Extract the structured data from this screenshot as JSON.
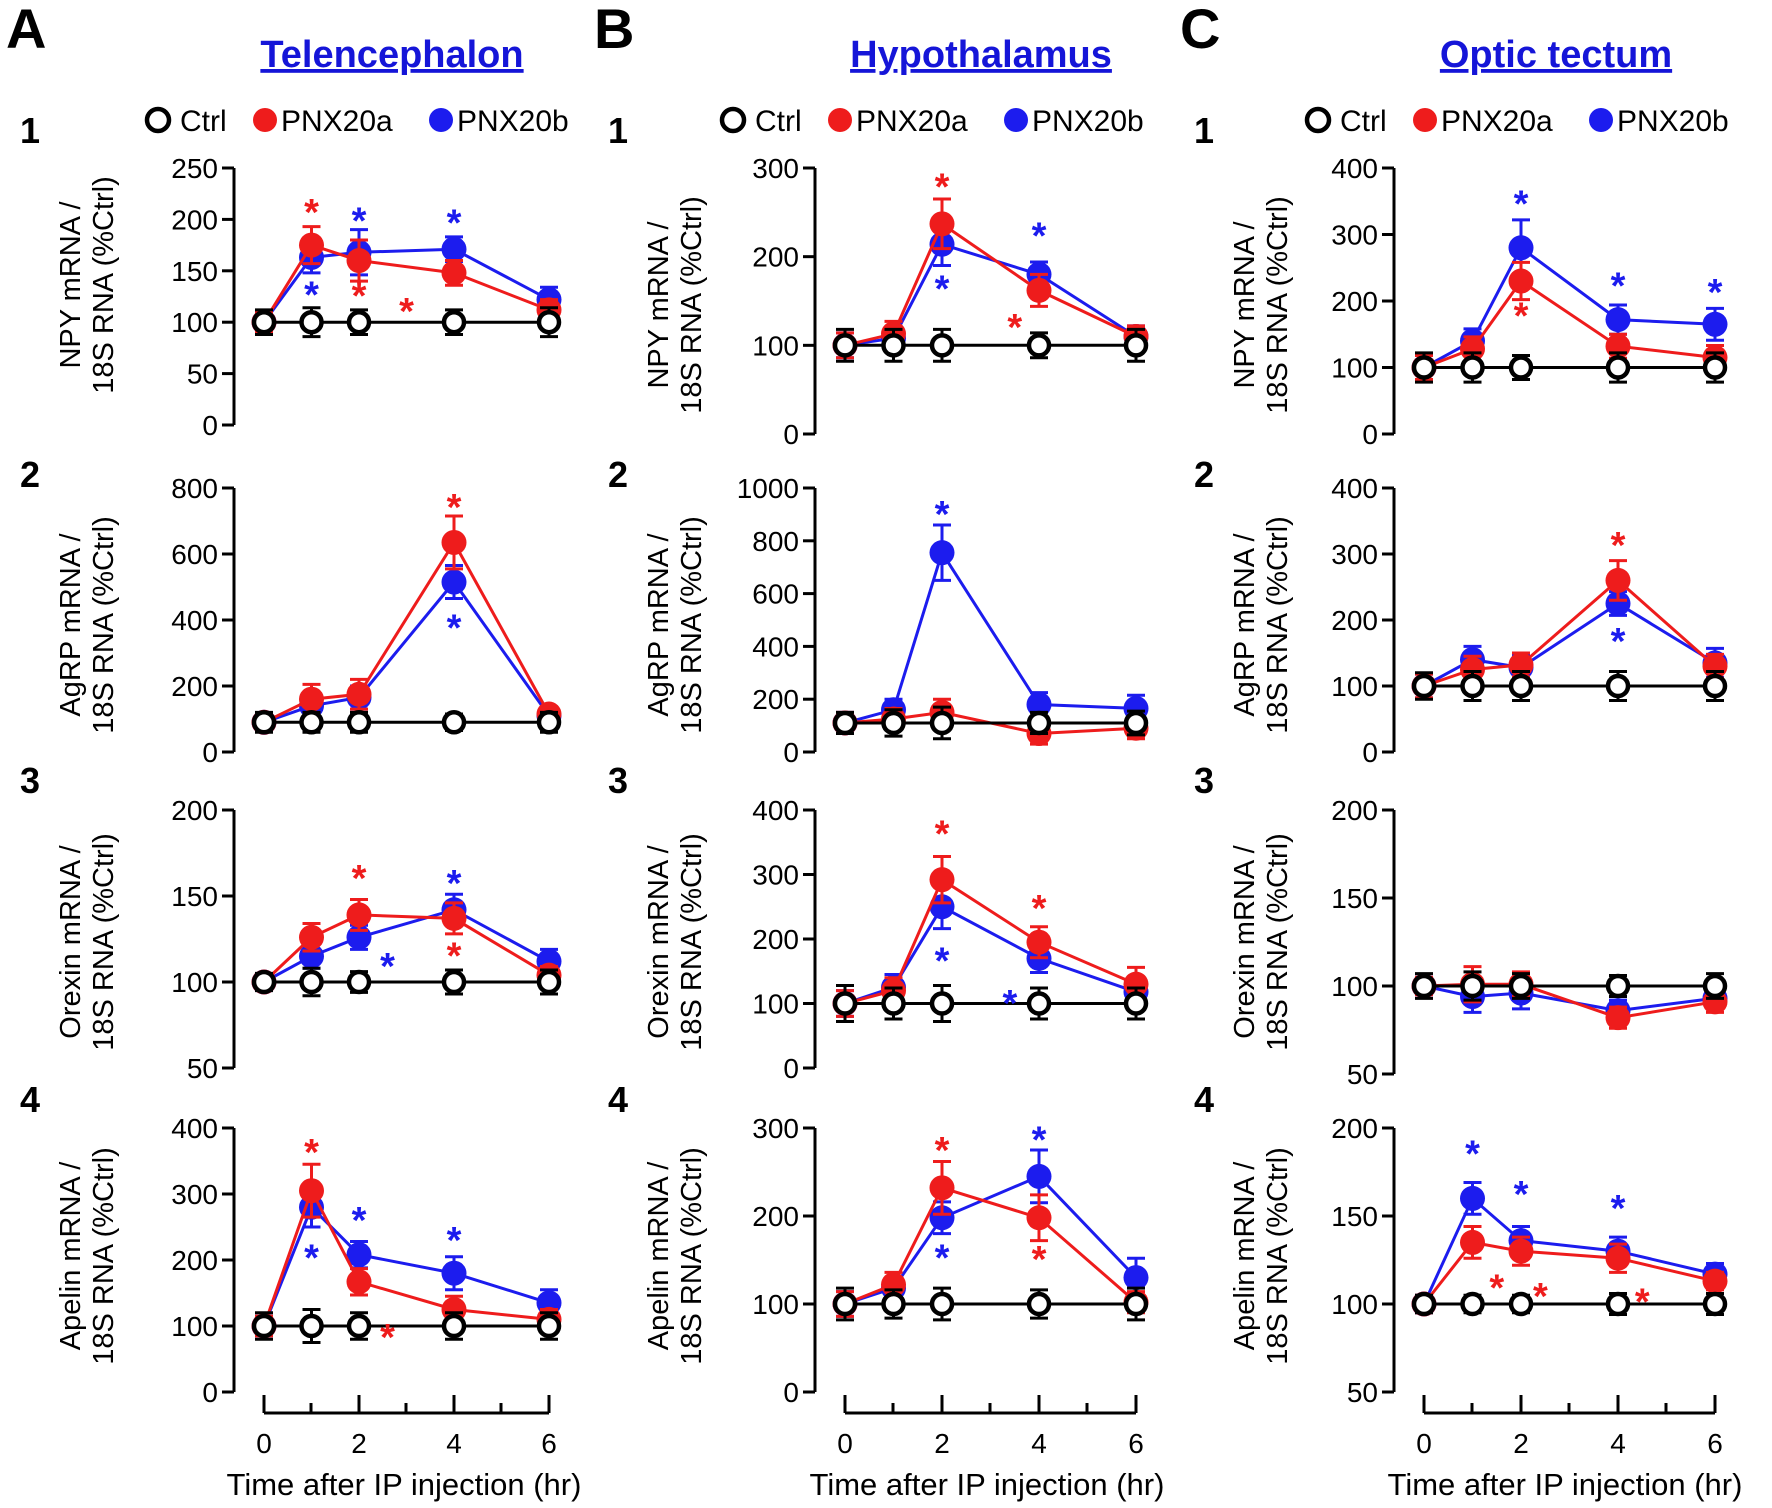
{
  "figure": {
    "x_axis_label": "Time after IP injection (hr)",
    "x_ticks": [
      "0",
      "2",
      "4",
      "6"
    ],
    "legend": [
      {
        "label": "Ctrl",
        "color": "#000000",
        "filled": false
      },
      {
        "label": "PNX20a",
        "color": "#ee1c1c",
        "filled": true
      },
      {
        "label": "PNX20b",
        "color": "#1c1cee",
        "filled": true
      }
    ],
    "row_labels": [
      "1",
      "2",
      "3",
      "4"
    ],
    "y_labels": [
      [
        "NPY mRNA /",
        "18S RNA (%Ctrl)"
      ],
      [
        "AgRP mRNA /",
        "18S RNA (%Ctrl)"
      ],
      [
        "Orexin mRNA /",
        "18S RNA (%Ctrl)"
      ],
      [
        "Apelin mRNA /",
        "18S RNA (%Ctrl)"
      ]
    ]
  },
  "columns": [
    {
      "letter": "A",
      "title": "Telencephalon"
    },
    {
      "letter": "B",
      "title": "Hypothalamus"
    },
    {
      "letter": "C",
      "title": "Optic tectum"
    }
  ],
  "colors": {
    "ctrl": "#000000",
    "pnx20a": "#ee1c1c",
    "pnx20b": "#1c1cee",
    "title": "#1515d8"
  },
  "chart_data": [
    {
      "type": "line",
      "column": "A",
      "row": "1",
      "gene": "NPY",
      "ylim": [
        0,
        250
      ],
      "yticks": [
        0,
        50,
        100,
        150,
        200,
        250
      ],
      "x": [
        0,
        1,
        2,
        4,
        6
      ],
      "series": [
        {
          "name": "Ctrl",
          "values": [
            100,
            100,
            100,
            100,
            100
          ],
          "err": [
            12,
            14,
            12,
            12,
            14
          ]
        },
        {
          "name": "PNX20a",
          "values": [
            100,
            175,
            160,
            148,
            112
          ],
          "err": [
            10,
            18,
            20,
            12,
            10
          ]
        },
        {
          "name": "PNX20b",
          "values": [
            100,
            163,
            168,
            171,
            122
          ],
          "err": [
            10,
            15,
            22,
            12,
            12
          ]
        }
      ],
      "annotations": [
        {
          "x": 1,
          "y": 208,
          "color": "red"
        },
        {
          "x": 1,
          "y": 128,
          "color": "blue"
        },
        {
          "x": 2,
          "y": 200,
          "color": "blue"
        },
        {
          "x": 2,
          "y": 127,
          "color": "red"
        },
        {
          "x": 4,
          "y": 198,
          "color": "blue"
        },
        {
          "x": 3,
          "y": 112,
          "color": "red"
        }
      ]
    },
    {
      "type": "line",
      "column": "A",
      "row": "2",
      "gene": "AgRP",
      "ylim": [
        0,
        800
      ],
      "yticks": [
        0,
        200,
        400,
        600,
        800
      ],
      "x": [
        0,
        1,
        2,
        4,
        6
      ],
      "series": [
        {
          "name": "Ctrl",
          "values": [
            90,
            90,
            90,
            90,
            90
          ],
          "err": [
            30,
            30,
            30,
            25,
            30
          ]
        },
        {
          "name": "PNX20a",
          "values": [
            90,
            160,
            175,
            635,
            115
          ],
          "err": [
            20,
            45,
            45,
            80,
            20
          ]
        },
        {
          "name": "PNX20b",
          "values": [
            90,
            140,
            165,
            515,
            110
          ],
          "err": [
            20,
            35,
            35,
            50,
            20
          ]
        }
      ],
      "annotations": [
        {
          "x": 4,
          "y": 745,
          "color": "red"
        },
        {
          "x": 4,
          "y": 380,
          "color": "blue"
        }
      ]
    },
    {
      "type": "line",
      "column": "A",
      "row": "3",
      "gene": "Orexin",
      "ylim": [
        50,
        200
      ],
      "yticks": [
        50,
        100,
        150,
        200
      ],
      "x": [
        0,
        1,
        2,
        4,
        6
      ],
      "series": [
        {
          "name": "Ctrl",
          "values": [
            100,
            100,
            100,
            100,
            100
          ],
          "err": [
            5,
            8,
            6,
            7,
            7
          ]
        },
        {
          "name": "PNX20a",
          "values": [
            100,
            126,
            139,
            137,
            104
          ],
          "err": [
            4,
            8,
            9,
            9,
            5
          ]
        },
        {
          "name": "PNX20b",
          "values": [
            100,
            115,
            126,
            142,
            112
          ],
          "err": [
            4,
            7,
            7,
            9,
            7
          ]
        }
      ],
      "annotations": [
        {
          "x": 2,
          "y": 161,
          "color": "red"
        },
        {
          "x": 4,
          "y": 158,
          "color": "blue"
        },
        {
          "x": 4,
          "y": 116,
          "color": "red"
        },
        {
          "x": 2.6,
          "y": 110,
          "color": "blue"
        }
      ]
    },
    {
      "type": "line",
      "column": "A",
      "row": "4",
      "gene": "Apelin",
      "ylim": [
        0,
        400
      ],
      "yticks": [
        0,
        100,
        200,
        300,
        400
      ],
      "x": [
        0,
        1,
        2,
        4,
        6
      ],
      "series": [
        {
          "name": "Ctrl",
          "values": [
            100,
            100,
            100,
            100,
            100
          ],
          "err": [
            20,
            25,
            20,
            20,
            20
          ]
        },
        {
          "name": "PNX20a",
          "values": [
            100,
            305,
            167,
            125,
            110
          ],
          "err": [
            15,
            40,
            20,
            20,
            15
          ]
        },
        {
          "name": "PNX20b",
          "values": [
            100,
            280,
            208,
            180,
            135
          ],
          "err": [
            15,
            30,
            20,
            25,
            20
          ]
        }
      ],
      "annotations": [
        {
          "x": 1,
          "y": 365,
          "color": "red"
        },
        {
          "x": 1,
          "y": 205,
          "color": "blue"
        },
        {
          "x": 2,
          "y": 262,
          "color": "blue"
        },
        {
          "x": 4,
          "y": 232,
          "color": "blue"
        },
        {
          "x": 2.6,
          "y": 85,
          "color": "red"
        }
      ]
    },
    {
      "type": "line",
      "column": "B",
      "row": "1",
      "gene": "NPY",
      "ylim": [
        0,
        300
      ],
      "yticks": [
        0,
        100,
        200,
        300
      ],
      "x": [
        0,
        1,
        2,
        4,
        6
      ],
      "series": [
        {
          "name": "Ctrl",
          "values": [
            100,
            100,
            100,
            100,
            100
          ],
          "err": [
            18,
            18,
            18,
            14,
            18
          ]
        },
        {
          "name": "PNX20a",
          "values": [
            100,
            113,
            237,
            162,
            110
          ],
          "err": [
            14,
            14,
            28,
            18,
            12
          ]
        },
        {
          "name": "PNX20b",
          "values": [
            100,
            108,
            214,
            180,
            110
          ],
          "err": [
            14,
            12,
            24,
            14,
            12
          ]
        }
      ],
      "annotations": [
        {
          "x": 2,
          "y": 280,
          "color": "red"
        },
        {
          "x": 2,
          "y": 165,
          "color": "blue"
        },
        {
          "x": 4,
          "y": 225,
          "color": "blue"
        },
        {
          "x": 3.5,
          "y": 122,
          "color": "red"
        }
      ]
    },
    {
      "type": "line",
      "column": "B",
      "row": "2",
      "gene": "AgRP",
      "ylim": [
        0,
        1000
      ],
      "yticks": [
        0,
        200,
        400,
        600,
        800,
        1000
      ],
      "x": [
        0,
        1,
        2,
        4,
        6
      ],
      "series": [
        {
          "name": "Ctrl",
          "values": [
            110,
            110,
            110,
            110,
            110
          ],
          "err": [
            40,
            50,
            60,
            40,
            45
          ]
        },
        {
          "name": "PNX20a",
          "values": [
            110,
            125,
            150,
            70,
            90
          ],
          "err": [
            40,
            40,
            50,
            40,
            40
          ]
        },
        {
          "name": "PNX20b",
          "values": [
            110,
            160,
            755,
            180,
            165
          ],
          "err": [
            40,
            40,
            105,
            45,
            50
          ]
        }
      ],
      "annotations": [
        {
          "x": 2,
          "y": 905,
          "color": "blue"
        }
      ]
    },
    {
      "type": "line",
      "column": "B",
      "row": "3",
      "gene": "Orexin",
      "ylim": [
        0,
        400
      ],
      "yticks": [
        0,
        100,
        200,
        300,
        400
      ],
      "x": [
        0,
        1,
        2,
        4,
        6
      ],
      "series": [
        {
          "name": "Ctrl",
          "values": [
            100,
            100,
            100,
            100,
            100
          ],
          "err": [
            28,
            24,
            28,
            24,
            24
          ]
        },
        {
          "name": "PNX20a",
          "values": [
            100,
            120,
            292,
            195,
            130
          ],
          "err": [
            20,
            20,
            36,
            24,
            26
          ]
        },
        {
          "name": "PNX20b",
          "values": [
            100,
            125,
            250,
            170,
            118
          ],
          "err": [
            20,
            20,
            34,
            22,
            18
          ]
        }
      ],
      "annotations": [
        {
          "x": 2,
          "y": 365,
          "color": "red"
        },
        {
          "x": 2,
          "y": 168,
          "color": "blue"
        },
        {
          "x": 4,
          "y": 250,
          "color": "red"
        },
        {
          "x": 3.4,
          "y": 102,
          "color": "blue"
        }
      ]
    },
    {
      "type": "line",
      "column": "B",
      "row": "4",
      "gene": "Apelin",
      "ylim": [
        0,
        300
      ],
      "yticks": [
        0,
        100,
        200,
        300
      ],
      "x": [
        0,
        1,
        2,
        4,
        6
      ],
      "series": [
        {
          "name": "Ctrl",
          "values": [
            100,
            100,
            100,
            100,
            100
          ],
          "err": [
            18,
            16,
            18,
            16,
            18
          ]
        },
        {
          "name": "PNX20a",
          "values": [
            100,
            122,
            232,
            198,
            102
          ],
          "err": [
            14,
            14,
            30,
            26,
            12
          ]
        },
        {
          "name": "PNX20b",
          "values": [
            100,
            118,
            198,
            245,
            130
          ],
          "err": [
            14,
            12,
            18,
            30,
            22
          ]
        }
      ],
      "annotations": [
        {
          "x": 2,
          "y": 276,
          "color": "red"
        },
        {
          "x": 2,
          "y": 154,
          "color": "blue"
        },
        {
          "x": 4,
          "y": 288,
          "color": "blue"
        },
        {
          "x": 4,
          "y": 152,
          "color": "red"
        }
      ]
    },
    {
      "type": "line",
      "column": "C",
      "row": "1",
      "gene": "NPY",
      "ylim": [
        0,
        400
      ],
      "yticks": [
        0,
        100,
        200,
        300,
        400
      ],
      "x": [
        0,
        1,
        2,
        4,
        6
      ],
      "series": [
        {
          "name": "Ctrl",
          "values": [
            100,
            100,
            100,
            100,
            100
          ],
          "err": [
            22,
            22,
            18,
            22,
            22
          ]
        },
        {
          "name": "PNX20a",
          "values": [
            100,
            128,
            230,
            132,
            115
          ],
          "err": [
            18,
            18,
            28,
            18,
            18
          ]
        },
        {
          "name": "PNX20b",
          "values": [
            100,
            140,
            280,
            172,
            165
          ],
          "err": [
            18,
            18,
            42,
            22,
            24
          ]
        }
      ],
      "annotations": [
        {
          "x": 2,
          "y": 348,
          "color": "blue"
        },
        {
          "x": 2,
          "y": 180,
          "color": "red"
        },
        {
          "x": 4,
          "y": 225,
          "color": "blue"
        },
        {
          "x": 6,
          "y": 215,
          "color": "blue"
        }
      ]
    },
    {
      "type": "line",
      "column": "C",
      "row": "2",
      "gene": "AgRP",
      "ylim": [
        0,
        400
      ],
      "yticks": [
        0,
        100,
        200,
        300,
        400
      ],
      "x": [
        0,
        1,
        2,
        4,
        6
      ],
      "series": [
        {
          "name": "Ctrl",
          "values": [
            100,
            100,
            100,
            100,
            100
          ],
          "err": [
            20,
            22,
            22,
            22,
            22
          ]
        },
        {
          "name": "PNX20a",
          "values": [
            100,
            125,
            132,
            260,
            130
          ],
          "err": [
            18,
            20,
            18,
            30,
            18
          ]
        },
        {
          "name": "PNX20b",
          "values": [
            100,
            140,
            128,
            225,
            135
          ],
          "err": [
            18,
            20,
            18,
            18,
            22
          ]
        }
      ],
      "annotations": [
        {
          "x": 4,
          "y": 315,
          "color": "red"
        },
        {
          "x": 4,
          "y": 170,
          "color": "blue"
        }
      ]
    },
    {
      "type": "line",
      "column": "C",
      "row": "3",
      "gene": "Orexin",
      "ylim": [
        50,
        200
      ],
      "yticks": [
        50,
        100,
        150,
        200
      ],
      "x": [
        0,
        1,
        2,
        4,
        6
      ],
      "series": [
        {
          "name": "Ctrl",
          "values": [
            100,
            100,
            100,
            100,
            100
          ],
          "err": [
            7,
            8,
            7,
            6,
            7
          ]
        },
        {
          "name": "PNX20a",
          "values": [
            100,
            101,
            101,
            82,
            91
          ],
          "err": [
            5,
            10,
            7,
            6,
            6
          ]
        },
        {
          "name": "PNX20b",
          "values": [
            100,
            94,
            96,
            86,
            93
          ],
          "err": [
            5,
            9,
            9,
            6,
            6
          ]
        }
      ],
      "annotations": []
    },
    {
      "type": "line",
      "column": "C",
      "row": "4",
      "gene": "Apelin",
      "ylim": [
        50,
        200
      ],
      "yticks": [
        50,
        100,
        150,
        200
      ],
      "x": [
        0,
        1,
        2,
        4,
        6
      ],
      "series": [
        {
          "name": "Ctrl",
          "values": [
            100,
            100,
            100,
            100,
            100
          ],
          "err": [
            5,
            5,
            5,
            6,
            6
          ]
        },
        {
          "name": "PNX20a",
          "values": [
            100,
            135,
            130,
            126,
            113
          ],
          "err": [
            5,
            9,
            8,
            8,
            5
          ]
        },
        {
          "name": "PNX20b",
          "values": [
            100,
            160,
            136,
            130,
            117
          ],
          "err": [
            5,
            9,
            8,
            8,
            6
          ]
        }
      ],
      "annotations": [
        {
          "x": 1,
          "y": 186,
          "color": "blue"
        },
        {
          "x": 2,
          "y": 163,
          "color": "blue"
        },
        {
          "x": 4,
          "y": 155,
          "color": "blue"
        },
        {
          "x": 1.5,
          "y": 110,
          "color": "red"
        },
        {
          "x": 2.4,
          "y": 105,
          "color": "red"
        },
        {
          "x": 4.5,
          "y": 102,
          "color": "red"
        }
      ]
    }
  ]
}
